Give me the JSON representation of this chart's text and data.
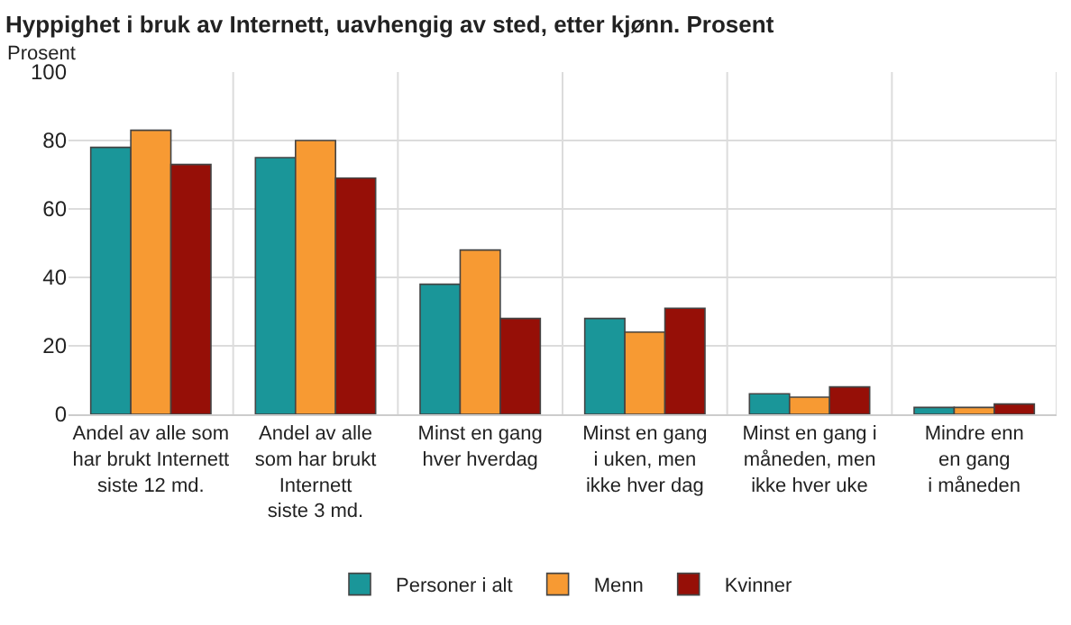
{
  "chart_data": {
    "type": "bar",
    "title": "Hyppighet i bruk av Internett, uavhengig av sted, etter kjønn. Prosent",
    "ylabel": "Prosent",
    "categories": [
      "Andel av alle som\nhar brukt Internett\nsiste 12 md.",
      "Andel av alle\nsom har brukt\nInternett\nsiste 3 md.",
      "Minst en gang\nhver hverdag",
      "Minst en gang\ni uken, men\nikke hver dag",
      "Minst en gang i\nmåneden, men\nikke hver uke",
      "Mindre enn\nen gang\ni måneden"
    ],
    "series": [
      {
        "name": "Personer i alt",
        "color": "#1a9699",
        "values": [
          78,
          75,
          38,
          28,
          6,
          2
        ]
      },
      {
        "name": "Menn",
        "color": "#f79a33",
        "values": [
          83,
          80,
          48,
          24,
          5,
          2
        ]
      },
      {
        "name": "Kvinner",
        "color": "#960f07",
        "values": [
          73,
          69,
          28,
          31,
          8,
          3
        ]
      }
    ],
    "ylim": [
      0,
      100
    ],
    "yticks": [
      0,
      20,
      40,
      60,
      80,
      100
    ],
    "grid": true,
    "legend": "bottom"
  }
}
